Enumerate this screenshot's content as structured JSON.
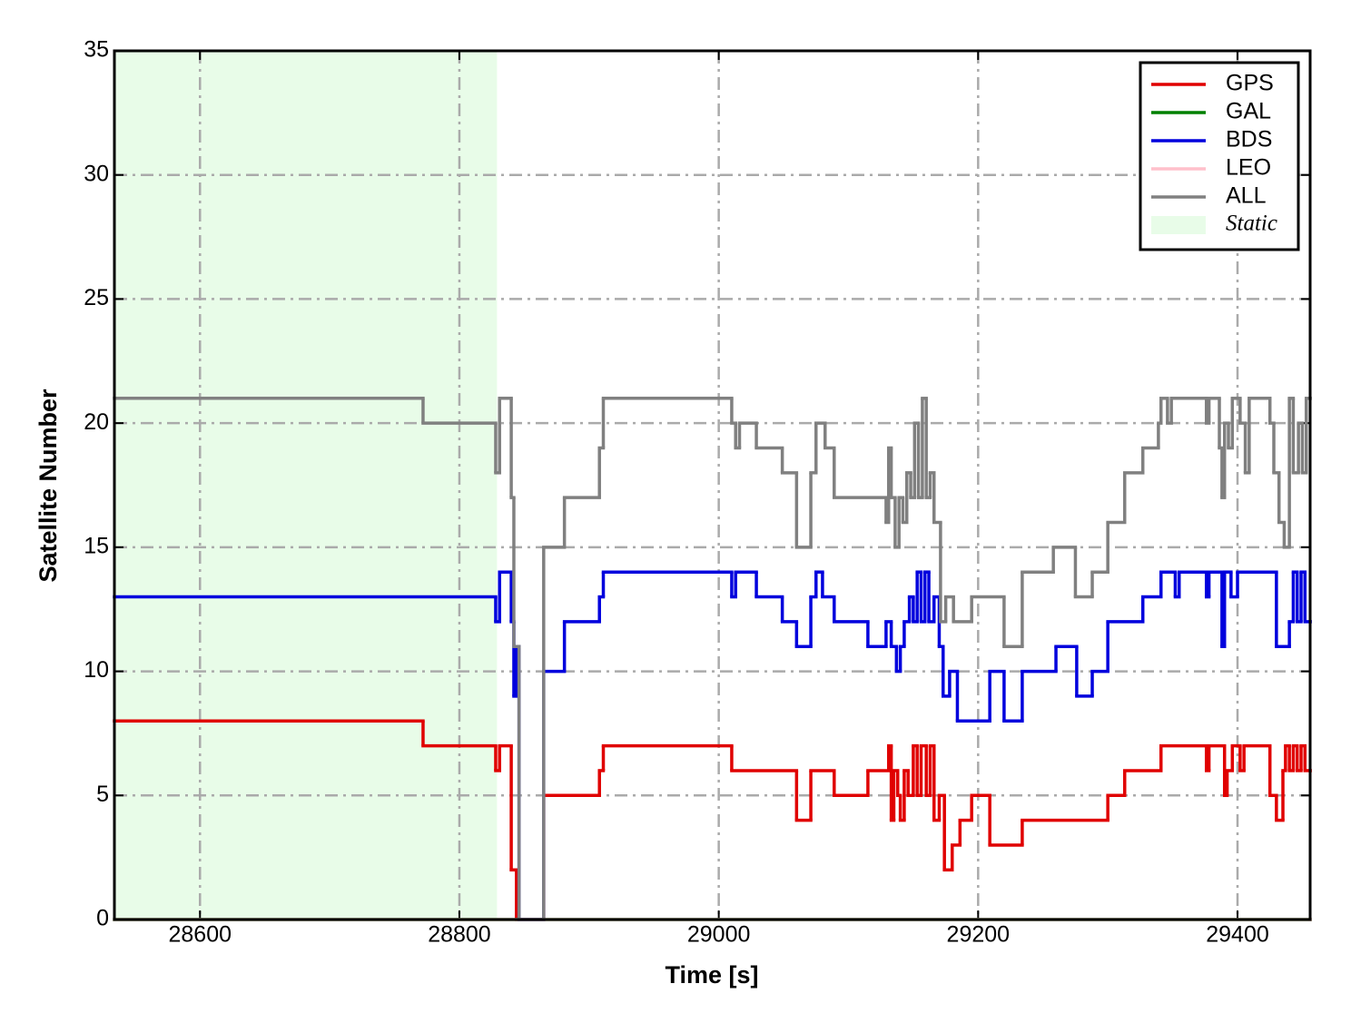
{
  "chart_data": {
    "type": "line",
    "step": "post",
    "x_label": "Time [s]",
    "y_label": "Satellite Number",
    "xlim": [
      28534,
      29456
    ],
    "ylim": [
      0,
      35
    ],
    "xticks": [
      28600,
      28800,
      29000,
      29200,
      29400
    ],
    "yticks": [
      0,
      5,
      10,
      15,
      20,
      25,
      30,
      35
    ],
    "grid": true,
    "legend": "upper right",
    "shade": {
      "label": "Static",
      "xrange": [
        28534,
        28829
      ],
      "color": "#e8fce8"
    },
    "series": [
      {
        "name": "GPS",
        "color": "#e00000",
        "x": [
          28534,
          28772,
          28828,
          28831,
          28840,
          28844,
          28865,
          28908,
          28911,
          29010,
          29060,
          29071,
          29089,
          29115,
          29131,
          29133,
          29135,
          29138,
          29140,
          29143,
          29146,
          29150,
          29153,
          29156,
          29160,
          29163,
          29166,
          29170,
          29174,
          29180,
          29186,
          29195,
          29209,
          29234,
          29300,
          29313,
          29341,
          29376,
          29378,
          29390,
          29392,
          29396,
          29402,
          29405,
          29425,
          29430,
          29435,
          29437,
          29440,
          29443,
          29446,
          29449,
          29452,
          29456
        ],
        "values": [
          8,
          7,
          6,
          7,
          2,
          0,
          5,
          6,
          7,
          6,
          4,
          6,
          5,
          6,
          7,
          4,
          6,
          5,
          4,
          6,
          5,
          7,
          5,
          7,
          5,
          7,
          4,
          5,
          2,
          3,
          4,
          5,
          3,
          4,
          5,
          6,
          7,
          6,
          7,
          5,
          6,
          7,
          6,
          7,
          5,
          4,
          6,
          7,
          6,
          7,
          6,
          7,
          6,
          6
        ]
      },
      {
        "name": "GAL",
        "color": "#008000",
        "x": [
          28534,
          29456
        ],
        "values": [
          0,
          0
        ]
      },
      {
        "name": "BDS",
        "color": "#0000dd",
        "x": [
          28534,
          28828,
          28831,
          28840,
          28842,
          28844,
          28846,
          28865,
          28881,
          28908,
          28911,
          29010,
          29013,
          29029,
          29049,
          29060,
          29071,
          29075,
          29080,
          29089,
          29115,
          29129,
          29133,
          29137,
          29140,
          29143,
          29147,
          29150,
          29153,
          29156,
          29159,
          29162,
          29166,
          29170,
          29173,
          29178,
          29184,
          29209,
          29220,
          29234,
          29260,
          29276,
          29288,
          29300,
          29327,
          29341,
          29352,
          29355,
          29376,
          29378,
          29388,
          29390,
          29395,
          29400,
          29430,
          29440,
          29443,
          29446,
          29449,
          29452,
          29456
        ],
        "values": [
          13,
          12,
          14,
          12,
          9,
          11,
          0,
          10,
          12,
          13,
          14,
          13,
          14,
          13,
          12,
          11,
          13,
          14,
          13,
          12,
          11,
          12,
          11,
          10,
          11,
          12,
          13,
          12,
          14,
          12,
          14,
          12,
          13,
          11,
          9,
          10,
          8,
          10,
          8,
          10,
          11,
          9,
          10,
          12,
          13,
          14,
          13,
          14,
          13,
          14,
          11,
          14,
          13,
          14,
          11,
          12,
          14,
          12,
          14,
          12,
          12
        ]
      },
      {
        "name": "LEO",
        "color": "#ffc0cb",
        "x": [
          28534,
          29456
        ],
        "values": [
          0,
          0
        ]
      },
      {
        "name": "ALL",
        "color": "#808080",
        "x": [
          28534,
          28772,
          28828,
          28831,
          28840,
          28842,
          28846,
          28865,
          28881,
          28908,
          28911,
          29010,
          29013,
          29016,
          29029,
          29049,
          29060,
          29071,
          29075,
          29082,
          29089,
          29129,
          29131,
          29133,
          29136,
          29139,
          29142,
          29145,
          29148,
          29151,
          29154,
          29157,
          29160,
          29163,
          29166,
          29171,
          29175,
          29181,
          29195,
          29220,
          29234,
          29258,
          29275,
          29288,
          29300,
          29313,
          29327,
          29339,
          29341,
          29346,
          29349,
          29376,
          29378,
          29386,
          29388,
          29390,
          29393,
          29396,
          29402,
          29406,
          29409,
          29425,
          29428,
          29432,
          29436,
          29440,
          29443,
          29447,
          29450,
          29453,
          29456
        ],
        "values": [
          21,
          20,
          18,
          21,
          17,
          11,
          0,
          15,
          17,
          19,
          21,
          20,
          19,
          20,
          19,
          18,
          15,
          18,
          20,
          19,
          17,
          16,
          19,
          17,
          15,
          17,
          16,
          18,
          17,
          20,
          17,
          21,
          17,
          18,
          16,
          12,
          13,
          12,
          13,
          11,
          14,
          15,
          13,
          14,
          16,
          18,
          19,
          20,
          21,
          20,
          21,
          20,
          21,
          19,
          17,
          20,
          19,
          21,
          20,
          18,
          21,
          20,
          18,
          16,
          15,
          21,
          18,
          20,
          18,
          21,
          21
        ]
      }
    ]
  }
}
